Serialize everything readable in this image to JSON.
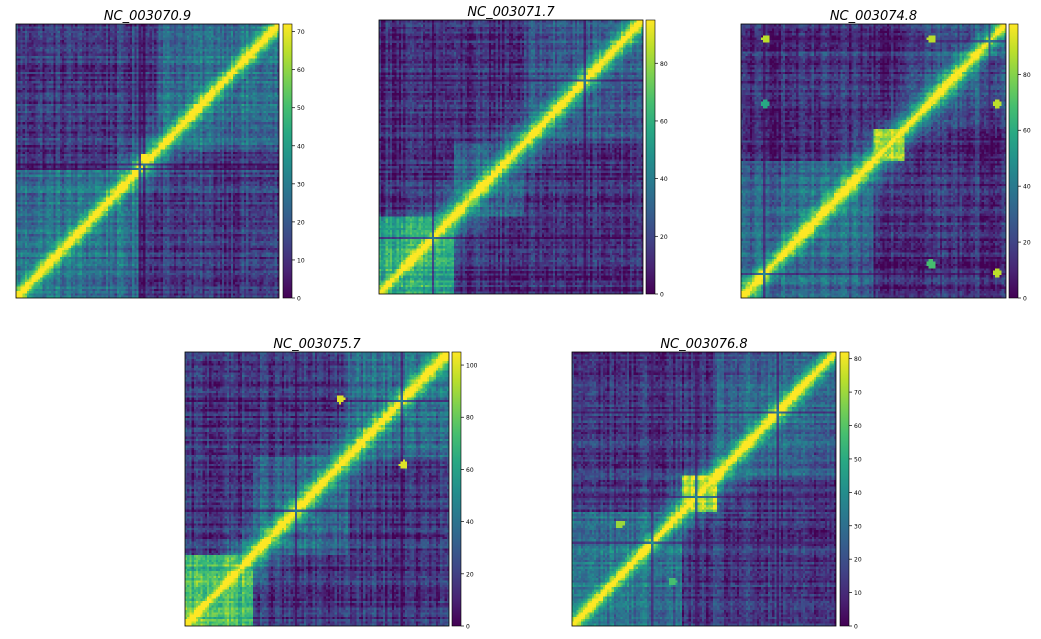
{
  "chart_data": [
    {
      "type": "heatmap",
      "title": "NC_003070.9",
      "colormap": "viridis",
      "vmin": 0,
      "vmax": 72,
      "colorbar_ticks": [
        0,
        10,
        20,
        30,
        40,
        50,
        60,
        70
      ],
      "pattern": {
        "diagonal_width": 0.045,
        "background": 0.17,
        "blocks": [
          {
            "from": 0.0,
            "to": 0.47,
            "level": 0.42
          },
          {
            "from": 0.53,
            "to": 1.0,
            "level": 0.4
          }
        ],
        "dark_bands": [
          0.47,
          0.49
        ],
        "bright_spots": [
          {
            "x": 0.49,
            "y": 0.49,
            "level": 1.0
          }
        ]
      }
    },
    {
      "type": "heatmap",
      "title": "NC_003071.7",
      "colormap": "viridis",
      "vmin": 0,
      "vmax": 95,
      "colorbar_ticks": [
        0,
        20,
        40,
        60,
        80
      ],
      "pattern": {
        "diagonal_width": 0.05,
        "background": 0.12,
        "blocks": [
          {
            "from": 0.0,
            "to": 0.28,
            "level": 0.65
          },
          {
            "from": 0.28,
            "to": 0.55,
            "level": 0.35
          },
          {
            "from": 0.55,
            "to": 1.0,
            "level": 0.3
          }
        ],
        "dark_bands": [
          0.2,
          0.78
        ],
        "bright_spots": []
      }
    },
    {
      "type": "heatmap",
      "title": "NC_003074.8",
      "colormap": "viridis",
      "vmin": 0,
      "vmax": 98,
      "colorbar_ticks": [
        0,
        20,
        40,
        60,
        80
      ],
      "pattern": {
        "diagonal_width": 0.05,
        "background": 0.13,
        "blocks": [
          {
            "from": 0.0,
            "to": 0.5,
            "level": 0.35
          },
          {
            "from": 0.5,
            "to": 0.62,
            "level": 0.95
          },
          {
            "from": 0.62,
            "to": 1.0,
            "level": 0.3
          }
        ],
        "dark_bands": [
          0.08,
          0.94
        ],
        "bright_spots": [
          {
            "x": 0.09,
            "y": 0.05,
            "level": 0.9
          },
          {
            "x": 0.72,
            "y": 0.05,
            "level": 0.9
          },
          {
            "x": 0.09,
            "y": 0.29,
            "level": 0.6
          },
          {
            "x": 0.97,
            "y": 0.29,
            "level": 0.9
          },
          {
            "x": 0.72,
            "y": 0.88,
            "level": 0.7
          },
          {
            "x": 0.97,
            "y": 0.91,
            "level": 0.9
          }
        ]
      }
    },
    {
      "type": "heatmap",
      "title": "NC_003075.7",
      "colormap": "viridis",
      "vmin": 0,
      "vmax": 105,
      "colorbar_ticks": [
        0,
        20,
        40,
        60,
        80,
        100
      ],
      "pattern": {
        "diagonal_width": 0.05,
        "background": 0.14,
        "blocks": [
          {
            "from": 0.0,
            "to": 0.26,
            "level": 0.75
          },
          {
            "from": 0.26,
            "to": 0.62,
            "level": 0.35
          },
          {
            "from": 0.62,
            "to": 1.0,
            "level": 0.38
          }
        ],
        "dark_bands": [
          0.42,
          0.82
        ],
        "bright_spots": [
          {
            "x": 0.59,
            "y": 0.17,
            "level": 0.95
          },
          {
            "x": 0.83,
            "y": 0.41,
            "level": 0.95
          }
        ]
      }
    },
    {
      "type": "heatmap",
      "title": "NC_003076.8",
      "colormap": "viridis",
      "vmin": 0,
      "vmax": 82,
      "colorbar_ticks": [
        0,
        10,
        20,
        30,
        40,
        50,
        60,
        70,
        80
      ],
      "pattern": {
        "diagonal_width": 0.045,
        "background": 0.15,
        "blocks": [
          {
            "from": 0.0,
            "to": 0.42,
            "level": 0.42
          },
          {
            "from": 0.42,
            "to": 0.55,
            "level": 0.9
          },
          {
            "from": 0.55,
            "to": 1.0,
            "level": 0.35
          }
        ],
        "dark_bands": [
          0.3,
          0.47,
          0.78
        ],
        "bright_spots": [
          {
            "x": 0.18,
            "y": 0.63,
            "level": 0.85
          },
          {
            "x": 0.38,
            "y": 0.84,
            "level": 0.7
          }
        ]
      }
    }
  ]
}
